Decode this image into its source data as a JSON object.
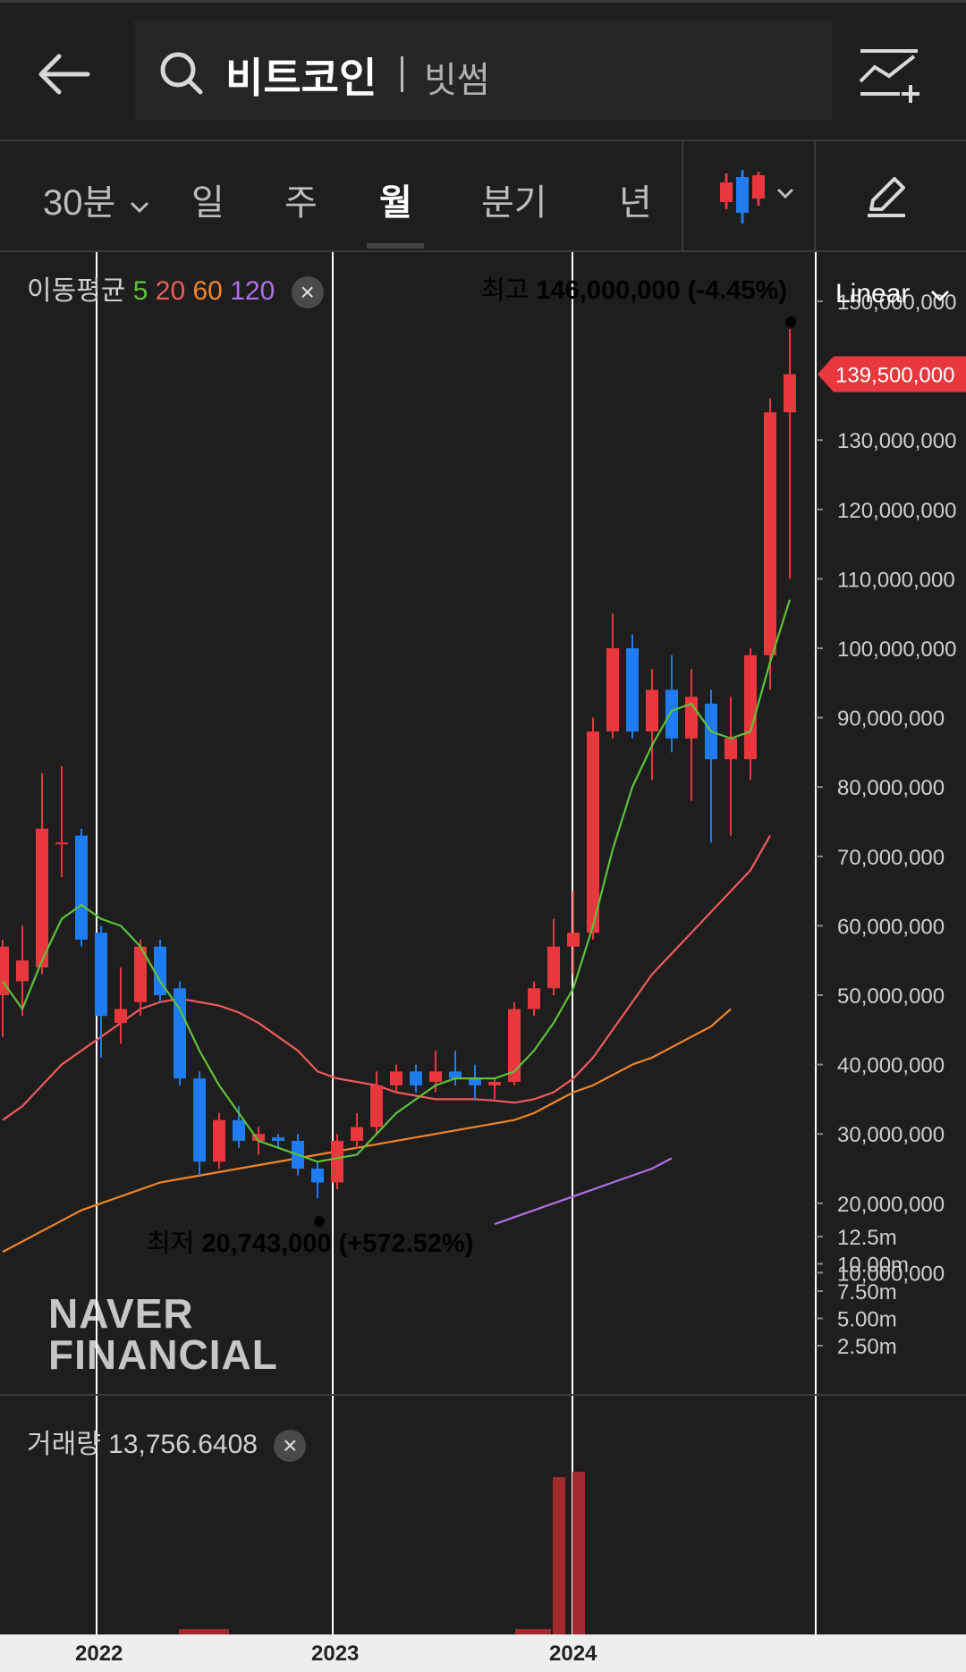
{
  "header": {
    "title": "비트코인",
    "exchange": "빗썸"
  },
  "periods": [
    {
      "label": "30분",
      "active": false
    },
    {
      "label": "일",
      "active": false
    },
    {
      "label": "주",
      "active": false
    },
    {
      "label": "월",
      "active": true
    },
    {
      "label": "분기",
      "active": false
    },
    {
      "label": "년",
      "active": false
    }
  ],
  "indicator": {
    "ma_label": "이동평균",
    "ma5": "5",
    "ma20": "20",
    "ma60": "60",
    "ma120": "120",
    "close": "×"
  },
  "scale_mode": "Linear",
  "high_label": "최고",
  "high_value": "146,000,000 (-4.45%)",
  "low_label": "최저",
  "low_value": "20,743,000 (+572.52%)",
  "current_price": "139,500,000",
  "price_ticks": [
    "150,000,000",
    "130,000,000",
    "120,000,000",
    "110,000,000",
    "100,000,000",
    "90,000,000",
    "80,000,000",
    "70,000,000",
    "60,000,000",
    "50,000,000",
    "40,000,000",
    "30,000,000",
    "20,000,000",
    "10,000,000"
  ],
  "volume": {
    "label": "거래량",
    "value": "13,756.6408",
    "ticks": [
      "12.5m",
      "10.00m",
      "7.50m",
      "5.00m",
      "2.50m"
    ]
  },
  "xaxis_labels": [
    "2022",
    "2023",
    "2024"
  ],
  "watermark": {
    "line1": "NAVER",
    "line2": "FINANCIAL"
  },
  "colors": {
    "up": "#e8383d",
    "down": "#1e7cf0",
    "ma5": "#5ec23a",
    "ma20": "#f05a5a",
    "ma60": "#f0852a",
    "ma120": "#b16ee6",
    "background": "#1e1e1e"
  },
  "chart_data": {
    "type": "candlestick",
    "unit": "KRW",
    "ylim": [
      10000000,
      150000000
    ],
    "candles": [
      {
        "o": 50000000,
        "h": 58000000,
        "l": 44000000,
        "c": 57000000
      },
      {
        "o": 52000000,
        "h": 60000000,
        "l": 47000000,
        "c": 55000000
      },
      {
        "o": 54000000,
        "h": 82000000,
        "l": 53000000,
        "c": 74000000
      },
      {
        "o": 72000000,
        "h": 83000000,
        "l": 67000000,
        "c": 72000000
      },
      {
        "o": 73000000,
        "h": 74000000,
        "l": 57000000,
        "c": 58000000
      },
      {
        "o": 59000000,
        "h": 60000000,
        "l": 41000000,
        "c": 47000000
      },
      {
        "o": 46000000,
        "h": 54000000,
        "l": 43000000,
        "c": 48000000
      },
      {
        "o": 49000000,
        "h": 58000000,
        "l": 47000000,
        "c": 57000000
      },
      {
        "o": 57000000,
        "h": 58000000,
        "l": 49000000,
        "c": 50000000
      },
      {
        "o": 51000000,
        "h": 52000000,
        "l": 37000000,
        "c": 38000000
      },
      {
        "o": 38000000,
        "h": 39000000,
        "l": 24000000,
        "c": 26000000
      },
      {
        "o": 26000000,
        "h": 33000000,
        "l": 25000000,
        "c": 32000000
      },
      {
        "o": 32000000,
        "h": 34000000,
        "l": 28000000,
        "c": 29000000
      },
      {
        "o": 29000000,
        "h": 31000000,
        "l": 27000000,
        "c": 30000000
      },
      {
        "o": 29500000,
        "h": 30000000,
        "l": 28000000,
        "c": 29000000
      },
      {
        "o": 29000000,
        "h": 30000000,
        "l": 24000000,
        "c": 25000000
      },
      {
        "o": 25000000,
        "h": 26000000,
        "l": 20743000,
        "c": 23000000
      },
      {
        "o": 23000000,
        "h": 30000000,
        "l": 22000000,
        "c": 29000000
      },
      {
        "o": 29000000,
        "h": 33000000,
        "l": 28000000,
        "c": 31000000
      },
      {
        "o": 31000000,
        "h": 39000000,
        "l": 30000000,
        "c": 37000000
      },
      {
        "o": 37000000,
        "h": 40000000,
        "l": 36000000,
        "c": 39000000
      },
      {
        "o": 39000000,
        "h": 40000000,
        "l": 36000000,
        "c": 37000000
      },
      {
        "o": 37500000,
        "h": 42000000,
        "l": 36000000,
        "c": 39000000
      },
      {
        "o": 39000000,
        "h": 42000000,
        "l": 37000000,
        "c": 38000000
      },
      {
        "o": 38000000,
        "h": 40000000,
        "l": 35000000,
        "c": 37000000
      },
      {
        "o": 37000000,
        "h": 38000000,
        "l": 35000000,
        "c": 37500000
      },
      {
        "o": 37500000,
        "h": 49000000,
        "l": 37000000,
        "c": 48000000
      },
      {
        "o": 48000000,
        "h": 52000000,
        "l": 47000000,
        "c": 51000000
      },
      {
        "o": 51000000,
        "h": 61000000,
        "l": 50000000,
        "c": 57000000
      },
      {
        "o": 57000000,
        "h": 65000000,
        "l": 53000000,
        "c": 59000000
      },
      {
        "o": 59000000,
        "h": 90000000,
        "l": 58000000,
        "c": 88000000
      },
      {
        "o": 88000000,
        "h": 105000000,
        "l": 87000000,
        "c": 100000000
      },
      {
        "o": 100000000,
        "h": 102000000,
        "l": 87000000,
        "c": 88000000
      },
      {
        "o": 88000000,
        "h": 97000000,
        "l": 81000000,
        "c": 94000000
      },
      {
        "o": 94000000,
        "h": 99000000,
        "l": 85000000,
        "c": 87000000
      },
      {
        "o": 87000000,
        "h": 97000000,
        "l": 78000000,
        "c": 93000000
      },
      {
        "o": 92000000,
        "h": 94000000,
        "l": 72000000,
        "c": 84000000
      },
      {
        "o": 84000000,
        "h": 93000000,
        "l": 73000000,
        "c": 87000000
      },
      {
        "o": 84000000,
        "h": 100000000,
        "l": 81000000,
        "c": 99000000
      },
      {
        "o": 99000000,
        "h": 136000000,
        "l": 94000000,
        "c": 134000000
      },
      {
        "o": 134000000,
        "h": 146000000,
        "l": 110000000,
        "c": 139500000
      }
    ],
    "ma5": [
      52000000,
      48000000,
      55000000,
      61000000,
      63000000,
      61000000,
      60000000,
      57000000,
      52000000,
      48000000,
      42000000,
      37000000,
      33000000,
      29000000,
      28000000,
      27000000,
      26000000,
      26500000,
      27000000,
      30000000,
      33000000,
      35000000,
      37000000,
      38000000,
      38000000,
      38000000,
      39000000,
      42000000,
      46000000,
      51000000,
      60000000,
      71000000,
      80000000,
      86000000,
      91000000,
      92000000,
      88000000,
      87000000,
      88000000,
      98000000,
      107000000
    ],
    "ma20": [
      32000000,
      34000000,
      37000000,
      40000000,
      42000000,
      44000000,
      46000000,
      48000000,
      49000000,
      49500000,
      49000000,
      48500000,
      47500000,
      46000000,
      44000000,
      42000000,
      39000000,
      38000000,
      37500000,
      37000000,
      36000000,
      35500000,
      35000000,
      35000000,
      35000000,
      34800000,
      34500000,
      35000000,
      36000000,
      38000000,
      41000000,
      45000000,
      49000000,
      53000000,
      56000000,
      59000000,
      62000000,
      65000000,
      68000000,
      73000000
    ],
    "ma60": [
      13000000,
      14500000,
      16000000,
      17500000,
      19000000,
      20000000,
      21000000,
      22000000,
      23000000,
      23500000,
      24000000,
      24500000,
      25000000,
      25500000,
      26000000,
      26500000,
      27000000,
      27500000,
      28000000,
      28500000,
      29000000,
      29500000,
      30000000,
      30500000,
      31000000,
      31500000,
      32000000,
      33000000,
      34500000,
      36000000,
      37000000,
      38500000,
      40000000,
      41000000,
      42500000,
      44000000,
      45500000,
      48000000
    ],
    "ma120": [
      17000000,
      18000000,
      19000000,
      20000000,
      21000000,
      22000000,
      23000000,
      24000000,
      25000000,
      26500000
    ],
    "volume_ticks": [
      12500000,
      10000000,
      7500000,
      5000000,
      2500000
    ]
  }
}
